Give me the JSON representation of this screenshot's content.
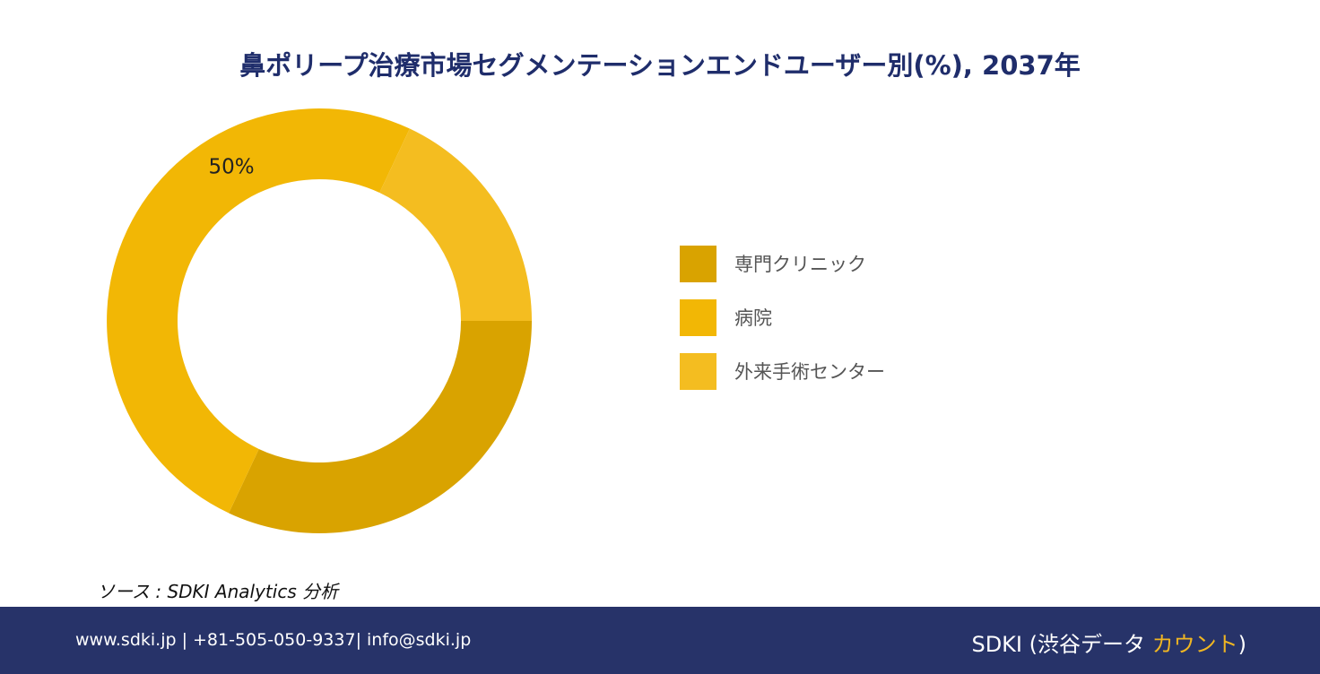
{
  "chart_data": {
    "type": "pie",
    "variant": "donut",
    "title": "鼻ポリープ治療市場セグメンテーションエンドユーザー別(%), 2037年",
    "series": [
      {
        "name": "専門クリニック",
        "value": 32,
        "color": "#d9a300"
      },
      {
        "name": "病院",
        "value": 50,
        "color": "#f2b705"
      },
      {
        "name": "外来手術センター",
        "value": 18,
        "color": "#f4bd20"
      }
    ],
    "data_labels": [
      {
        "series": "病院",
        "text": "50%"
      }
    ],
    "legend_position": "right"
  },
  "source": "ソース : SDKI Analytics 分析",
  "footer": {
    "contact": "www.sdki.jp | +81-505-050-9337| info@sdki.jp",
    "brand_prefix": "SDKI (渋谷データ ",
    "brand_accent": "カウント",
    "brand_suffix": ")"
  }
}
